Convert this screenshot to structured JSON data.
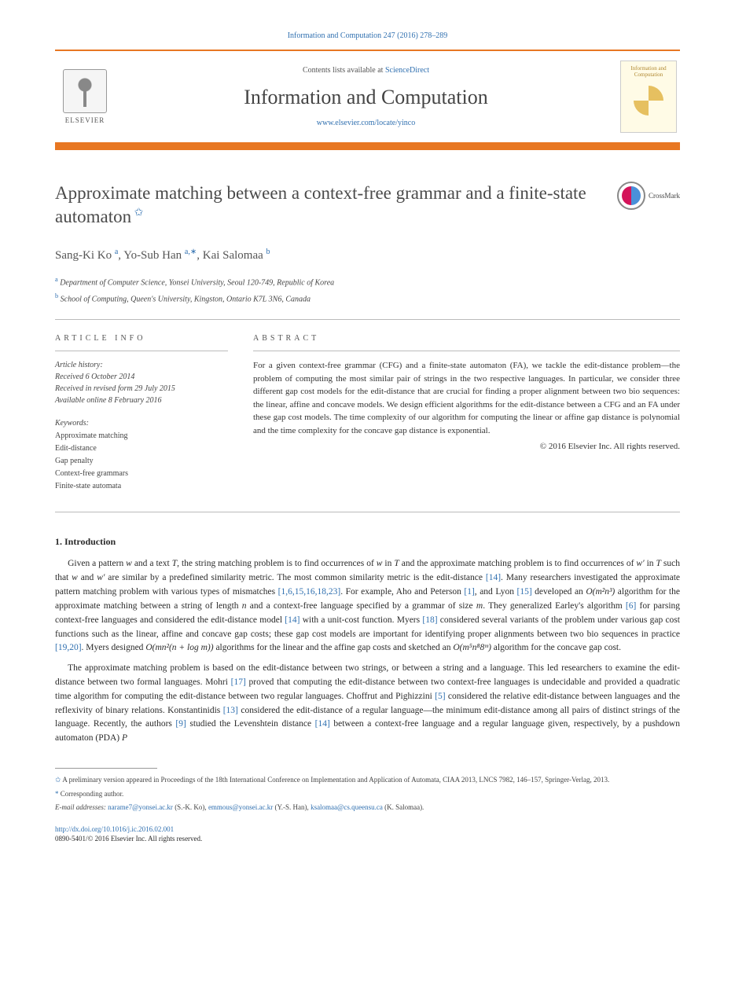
{
  "header": {
    "citation": "Information and Computation 247 (2016) 278–289",
    "contents_prefix": "Contents lists available at ",
    "contents_link": "ScienceDirect",
    "journal_title": "Information and Computation",
    "journal_url": "www.elsevier.com/locate/yinco",
    "publisher": "ELSEVIER",
    "cover_label": "Information and Computation",
    "crossmark": "CrossMark"
  },
  "article": {
    "title": "Approximate matching between a context-free grammar and a finite-state automaton",
    "authors_html": "Sang-Ki Ko",
    "author1": {
      "name": "Sang-Ki Ko",
      "sup": "a"
    },
    "author2": {
      "name": "Yo-Sub Han",
      "sup": "a,∗"
    },
    "author3": {
      "name": "Kai Salomaa",
      "sup": "b"
    },
    "affiliations": [
      {
        "sup": "a",
        "text": "Department of Computer Science, Yonsei University, Seoul 120-749, Republic of Korea"
      },
      {
        "sup": "b",
        "text": "School of Computing, Queen's University, Kingston, Ontario K7L 3N6, Canada"
      }
    ]
  },
  "info": {
    "heading": "article info",
    "history_head": "Article history:",
    "history": [
      "Received 6 October 2014",
      "Received in revised form 29 July 2015",
      "Available online 8 February 2016"
    ],
    "keywords_head": "Keywords:",
    "keywords": [
      "Approximate matching",
      "Edit-distance",
      "Gap penalty",
      "Context-free grammars",
      "Finite-state automata"
    ]
  },
  "abstract": {
    "heading": "abstract",
    "text": "For a given context-free grammar (CFG) and a finite-state automaton (FA), we tackle the edit-distance problem—the problem of computing the most similar pair of strings in the two respective languages. In particular, we consider three different gap cost models for the edit-distance that are crucial for finding a proper alignment between two bio sequences: the linear, affine and concave models. We design efficient algorithms for the edit-distance between a CFG and an FA under these gap cost models. The time complexity of our algorithm for computing the linear or affine gap distance is polynomial and the time complexity for the concave gap distance is exponential.",
    "copyright": "© 2016 Elsevier Inc. All rights reserved."
  },
  "sections": {
    "intro_title": "1. Introduction",
    "para1_a": "Given a pattern ",
    "para1_b": " and a text ",
    "para1_c": ", the string matching problem is to find occurrences of ",
    "para1_d": " in ",
    "para1_e": " and the approximate matching problem is to find occurrences of ",
    "para1_f": " in ",
    "para1_g": " such that ",
    "para1_h": " and ",
    "para1_i": " are similar by a predefined similarity metric. The most common similarity metric is the edit-distance ",
    "para1_j": ". Many researchers investigated the approximate pattern matching problem with various types of mismatches ",
    "para1_k": ". For example, Aho and Peterson ",
    "para1_l": ", and Lyon ",
    "para1_m": " developed an ",
    "para1_n": " algorithm for the approximate matching between a string of length ",
    "para1_o": " and a context-free language specified by a grammar of size ",
    "para1_p": ". They generalized Earley's algorithm ",
    "para1_q": " for parsing context-free languages and considered the edit-distance model ",
    "para1_r": " with a unit-cost function. Myers ",
    "para1_s": " considered several variants of the problem under various gap cost functions such as the linear, affine and concave gap costs; these gap cost models are important for identifying proper alignments between two bio sequences in practice ",
    "para1_t": ". Myers designed ",
    "para1_u": " algorithms for the linear and the affine gap costs and sketched an ",
    "para1_v": " algorithm for the concave gap cost.",
    "para2_a": "The approximate matching problem is based on the edit-distance between two strings, or between a string and a language. This led researchers to examine the edit-distance between two formal languages. Mohri ",
    "para2_b": " proved that computing the edit-distance between two context-free languages is undecidable and provided a quadratic time algorithm for computing the edit-distance between two regular languages. Choffrut and Pighizzini ",
    "para2_c": " considered the relative edit-distance between languages and the reflexivity of binary relations. Konstantinidis ",
    "para2_d": " considered the edit-distance of a regular language—the minimum edit-distance among all pairs of distinct strings of the language. Recently, the authors ",
    "para2_e": " studied the Levenshtein distance ",
    "para2_f": " between a context-free language and a regular language given, respectively, by a pushdown automaton (PDA) "
  },
  "math": {
    "w": "w",
    "T": "T",
    "wprime": "w′",
    "n": "n",
    "m": "m",
    "O_m2n3": "O(m²n³)",
    "O_mn2": "O(mn²(n + log m))",
    "O_m5n8": "O(m⁵n⁸8ᵐ)",
    "P": "P"
  },
  "refs": {
    "r14": "[14]",
    "r1_6_15_16_18_23": "[1,6,15,16,18,23]",
    "r1": "[1]",
    "r15": "[15]",
    "r6": "[6]",
    "r18": "[18]",
    "r19_20": "[19,20]",
    "r17": "[17]",
    "r5": "[5]",
    "r13": "[13]",
    "r9": "[9]"
  },
  "footnotes": {
    "f1": "A preliminary version appeared in Proceedings of the 18th International Conference on Implementation and Application of Automata, CIAA 2013, LNCS 7982, 146–157, Springer-Verlag, 2013.",
    "f2": "Corresponding author.",
    "emails_label": "E-mail addresses: ",
    "email1": "narame7@yonsei.ac.kr",
    "email1_who": " (S.-K. Ko), ",
    "email2": "emmous@yonsei.ac.kr",
    "email2_who": " (Y.-S. Han), ",
    "email3": "ksalomaa@cs.queensu.ca",
    "email3_who": " (K. Salomaa)."
  },
  "doi": {
    "url": "http://dx.doi.org/10.1016/j.ic.2016.02.001",
    "issn_line": "0890-5401/© 2016 Elsevier Inc. All rights reserved."
  },
  "colors": {
    "accent_orange": "#e87722",
    "link_blue": "#3070b0"
  }
}
